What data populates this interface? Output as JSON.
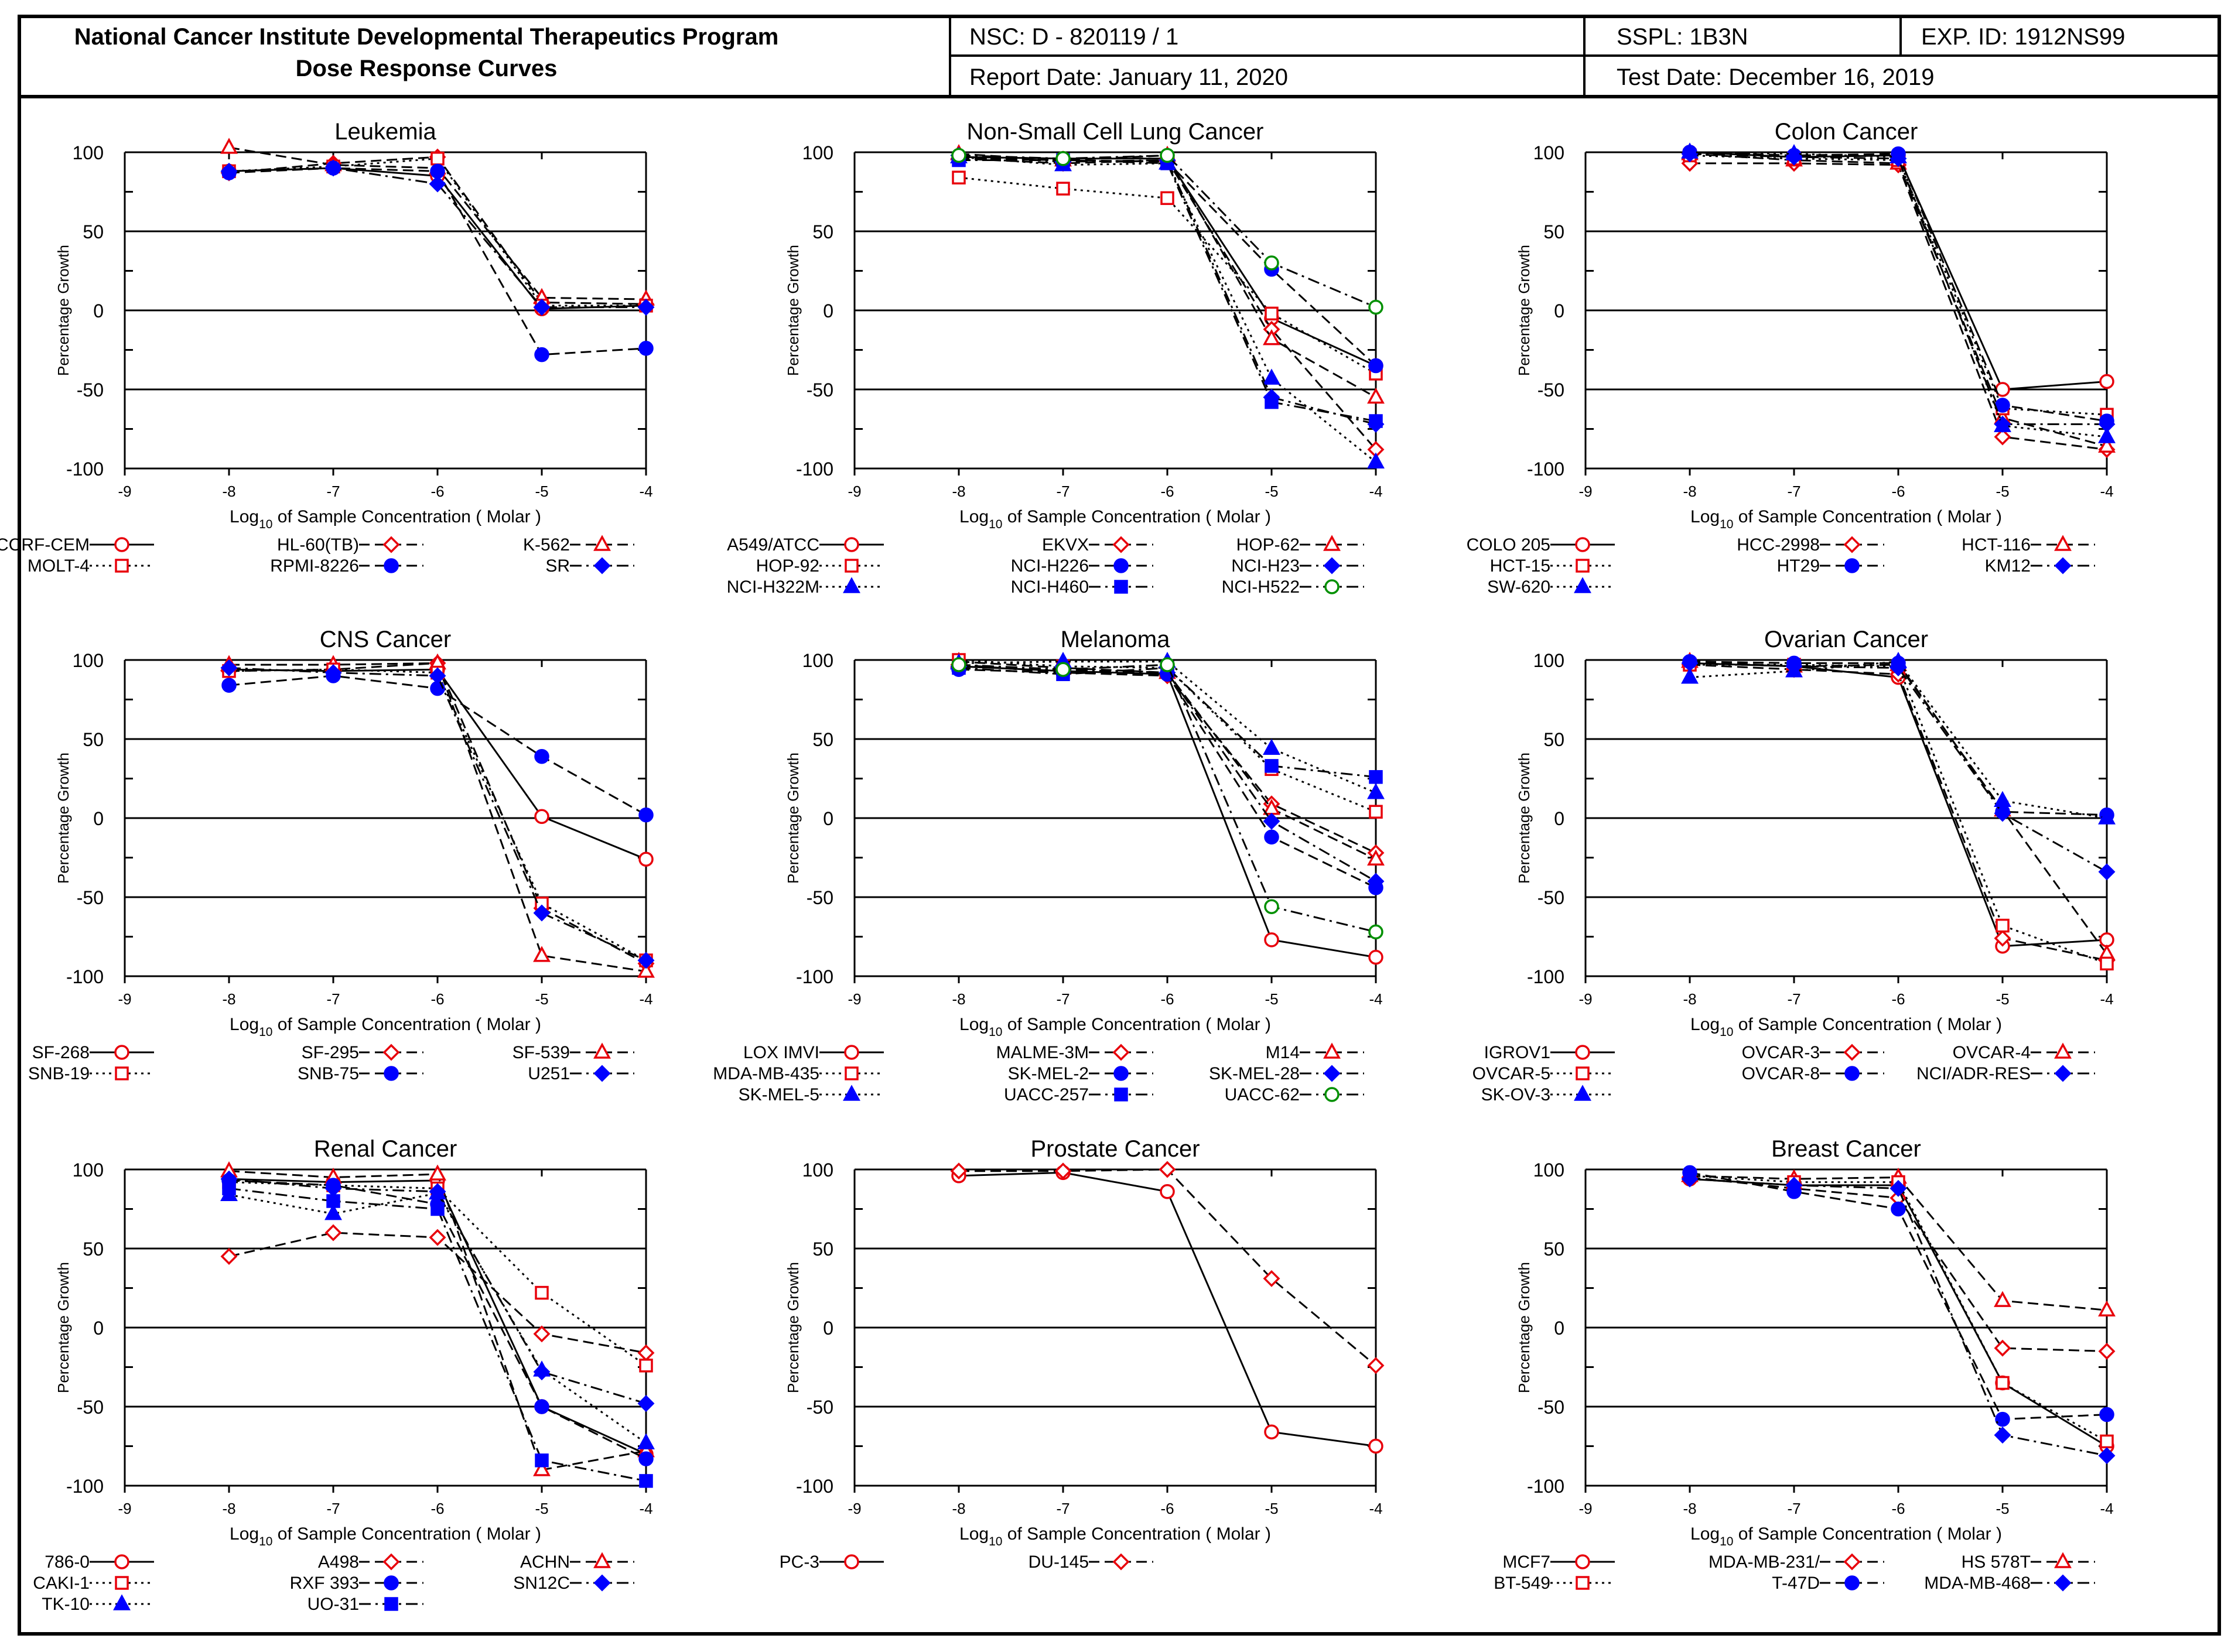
{
  "header": {
    "title_line1": "National Cancer Institute Developmental Therapeutics Program",
    "title_line2": "Dose Response Curves",
    "nsc": "NSC: D - 820119 / 1",
    "sspl": "SSPL: 1B3N",
    "exp_id": "EXP. ID: 1912NS99",
    "report_date": "Report Date: January 11, 2020",
    "test_date": "Test Date: December 16, 2019"
  },
  "axis_text": {
    "ylabel": "Percentage Growth",
    "xlabel_pre": "Log",
    "xlabel_sub": "10",
    "xlabel_post": " of Sample Concentration ( Molar )",
    "xticks": [
      "-9",
      "-8",
      "-7",
      "-6",
      "-5",
      "-4"
    ],
    "yticks": [
      "100",
      "50",
      "0",
      "-50",
      "-100"
    ]
  },
  "styles": {
    "0": {
      "color": "#e8000b",
      "marker": "open-circle",
      "dash": "solid"
    },
    "1": {
      "color": "#e8000b",
      "marker": "open-diamond",
      "dash": "dashed"
    },
    "2": {
      "color": "#e8000b",
      "marker": "open-triangle",
      "dash": "dashed"
    },
    "3": {
      "color": "#e8000b",
      "marker": "open-square",
      "dash": "dotted"
    },
    "4": {
      "color": "#0000ff",
      "marker": "filled-circle",
      "dash": "dashed"
    },
    "5": {
      "color": "#0000ff",
      "marker": "filled-diamond",
      "dash": "dashdot"
    },
    "6": {
      "color": "#0000ff",
      "marker": "filled-triangle",
      "dash": "dotted"
    },
    "7": {
      "color": "#0000ff",
      "marker": "filled-square",
      "dash": "dashdot"
    },
    "8": {
      "color": "#009000",
      "marker": "open-circle",
      "dash": "dashdot"
    }
  },
  "chart_data": [
    {
      "type": "line",
      "title": "Leukemia",
      "x": [
        -8,
        -7,
        -6,
        -5,
        -4
      ],
      "xlim": [
        -9,
        -4
      ],
      "ylim": [
        -100,
        100
      ],
      "series": [
        {
          "name": "CCRF-CEM",
          "values": [
            88,
            90,
            85,
            1,
            3
          ]
        },
        {
          "name": "HL-60(TB)",
          "values": [
            87,
            93,
            97,
            5,
            4
          ]
        },
        {
          "name": "K-562",
          "values": [
            103,
            92,
            90,
            8,
            7
          ]
        },
        {
          "name": "MOLT-4",
          "values": [
            88,
            91,
            96,
            3,
            3
          ]
        },
        {
          "name": "RPMI-8226",
          "values": [
            87,
            90,
            88,
            -28,
            -24
          ]
        },
        {
          "name": "SR",
          "values": [
            88,
            90,
            80,
            2,
            2
          ]
        }
      ]
    },
    {
      "type": "line",
      "title": "Non-Small Cell Lung Cancer",
      "x": [
        -8,
        -7,
        -6,
        -5,
        -4
      ],
      "xlim": [
        -9,
        -4
      ],
      "ylim": [
        -100,
        100
      ],
      "series": [
        {
          "name": "A549/ATCC",
          "values": [
            97,
            96,
            96,
            -5,
            -35
          ]
        },
        {
          "name": "EKVX",
          "values": [
            96,
            93,
            95,
            -12,
            -88
          ]
        },
        {
          "name": "HOP-62",
          "values": [
            99,
            95,
            98,
            -18,
            -55
          ]
        },
        {
          "name": "HOP-92",
          "values": [
            84,
            77,
            71,
            -2,
            -40
          ]
        },
        {
          "name": "NCI-H226",
          "values": [
            96,
            95,
            94,
            26,
            -35
          ]
        },
        {
          "name": "NCI-H23",
          "values": [
            98,
            94,
            95,
            -55,
            -72
          ]
        },
        {
          "name": "NCI-H322M",
          "values": [
            97,
            92,
            93,
            -43,
            -96
          ]
        },
        {
          "name": "NCI-H460",
          "values": [
            95,
            95,
            93,
            -58,
            -70
          ]
        },
        {
          "name": "NCI-H522",
          "values": [
            98,
            96,
            98,
            30,
            2
          ]
        }
      ]
    },
    {
      "type": "line",
      "title": "Colon Cancer",
      "x": [
        -8,
        -7,
        -6,
        -5,
        -4
      ],
      "xlim": [
        -9,
        -4
      ],
      "ylim": [
        -100,
        100
      ],
      "series": [
        {
          "name": "COLO 205",
          "values": [
            100,
            97,
            98,
            -50,
            -45
          ]
        },
        {
          "name": "HCC-2998",
          "values": [
            93,
            93,
            92,
            -80,
            -88
          ]
        },
        {
          "name": "HCT-116",
          "values": [
            99,
            95,
            93,
            -68,
            -86
          ]
        },
        {
          "name": "HCT-15",
          "values": [
            98,
            96,
            95,
            -62,
            -66
          ]
        },
        {
          "name": "HT29",
          "values": [
            100,
            98,
            99,
            -60,
            -70
          ]
        },
        {
          "name": "KM12",
          "values": [
            99,
            97,
            96,
            -72,
            -72
          ]
        },
        {
          "name": "SW-620",
          "values": [
            100,
            99,
            97,
            -73,
            -80
          ]
        }
      ]
    },
    {
      "type": "line",
      "title": "CNS Cancer",
      "x": [
        -8,
        -7,
        -6,
        -5,
        -4
      ],
      "xlim": [
        -9,
        -4
      ],
      "ylim": [
        -100,
        100
      ],
      "series": [
        {
          "name": "SF-268",
          "values": [
            94,
            93,
            94,
            1,
            -26
          ]
        },
        {
          "name": "SF-295",
          "values": [
            93,
            94,
            98,
            -57,
            -92
          ]
        },
        {
          "name": "SF-539",
          "values": [
            97,
            97,
            98,
            -87,
            -97
          ]
        },
        {
          "name": "SNB-19",
          "values": [
            93,
            94,
            92,
            -54,
            -90
          ]
        },
        {
          "name": "SNB-75",
          "values": [
            84,
            90,
            82,
            39,
            2
          ]
        },
        {
          "name": "U251",
          "values": [
            95,
            92,
            90,
            -60,
            -90
          ]
        }
      ]
    },
    {
      "type": "line",
      "title": "Melanoma",
      "x": [
        -8,
        -7,
        -6,
        -5,
        -4
      ],
      "xlim": [
        -9,
        -4
      ],
      "ylim": [
        -100,
        100
      ],
      "series": [
        {
          "name": "LOX IMVI",
          "values": [
            96,
            93,
            91,
            -77,
            -88
          ]
        },
        {
          "name": "MALME-3M",
          "values": [
            97,
            92,
            90,
            9,
            -22
          ]
        },
        {
          "name": "M14",
          "values": [
            99,
            95,
            92,
            6,
            -26
          ]
        },
        {
          "name": "MDA-MB-435",
          "values": [
            100,
            96,
            95,
            31,
            4
          ]
        },
        {
          "name": "SK-MEL-2",
          "values": [
            94,
            92,
            91,
            -12,
            -44
          ]
        },
        {
          "name": "SK-MEL-28",
          "values": [
            96,
            94,
            92,
            -2,
            -40
          ]
        },
        {
          "name": "SK-MEL-5",
          "values": [
            98,
            99,
            99,
            44,
            16
          ]
        },
        {
          "name": "UACC-257",
          "values": [
            95,
            91,
            95,
            33,
            26
          ]
        },
        {
          "name": "UACC-62",
          "values": [
            97,
            94,
            97,
            -56,
            -72
          ]
        }
      ]
    },
    {
      "type": "line",
      "title": "Ovarian Cancer",
      "x": [
        -8,
        -7,
        -6,
        -5,
        -4
      ],
      "xlim": [
        -9,
        -4
      ],
      "ylim": [
        -100,
        100
      ],
      "series": [
        {
          "name": "IGROV1",
          "values": [
            98,
            96,
            89,
            -81,
            -77
          ]
        },
        {
          "name": "OVCAR-3",
          "values": [
            97,
            94,
            91,
            -76,
            -90
          ]
        },
        {
          "name": "OVCAR-4",
          "values": [
            99,
            96,
            97,
            5,
            -86
          ]
        },
        {
          "name": "OVCAR-5",
          "values": [
            97,
            97,
            96,
            -68,
            -92
          ]
        },
        {
          "name": "OVCAR-8",
          "values": [
            99,
            98,
            98,
            4,
            2
          ]
        },
        {
          "name": "NCI/ADR-RES",
          "values": [
            98,
            96,
            95,
            3,
            -34
          ]
        },
        {
          "name": "SK-OV-3",
          "values": [
            89,
            93,
            99,
            11,
            0
          ]
        }
      ]
    },
    {
      "type": "line",
      "title": "Renal Cancer",
      "x": [
        -8,
        -7,
        -6,
        -5,
        -4
      ],
      "xlim": [
        -9,
        -4
      ],
      "ylim": [
        -100,
        100
      ],
      "series": [
        {
          "name": "786-0",
          "values": [
            94,
            92,
            93,
            -50,
            -80
          ]
        },
        {
          "name": "A498",
          "values": [
            45,
            60,
            57,
            -4,
            -16
          ]
        },
        {
          "name": "ACHN",
          "values": [
            99,
            95,
            97,
            -90,
            -78
          ]
        },
        {
          "name": "CAKI-1",
          "values": [
            92,
            90,
            88,
            22,
            -24
          ]
        },
        {
          "name": "RXF 393",
          "values": [
            93,
            90,
            78,
            -50,
            -83
          ]
        },
        {
          "name": "SN12C",
          "values": [
            94,
            88,
            86,
            -28,
            -48
          ]
        },
        {
          "name": "TK-10",
          "values": [
            84,
            72,
            85,
            -27,
            -73
          ]
        },
        {
          "name": "UO-31",
          "values": [
            88,
            80,
            75,
            -84,
            -97
          ]
        }
      ]
    },
    {
      "type": "line",
      "title": "Prostate Cancer",
      "x": [
        -8,
        -7,
        -6,
        -5,
        -4
      ],
      "xlim": [
        -9,
        -4
      ],
      "ylim": [
        -100,
        100
      ],
      "series": [
        {
          "name": "PC-3",
          "values": [
            96,
            98,
            86,
            -66,
            -75
          ]
        },
        {
          "name": "DU-145",
          "values": [
            99,
            99,
            100,
            31,
            -24
          ]
        }
      ]
    },
    {
      "type": "line",
      "title": "Breast Cancer",
      "x": [
        -8,
        -7,
        -6,
        -5,
        -4
      ],
      "xlim": [
        -9,
        -4
      ],
      "ylim": [
        -100,
        100
      ],
      "series": [
        {
          "name": "MCF7",
          "values": [
            94,
            90,
            90,
            -35,
            -75
          ]
        },
        {
          "name": "MDA-MB-231/",
          "values": [
            95,
            88,
            82,
            -13,
            -15
          ]
        },
        {
          "name": "HS 578T",
          "values": [
            96,
            94,
            95,
            17,
            11
          ]
        },
        {
          "name": "BT-549",
          "values": [
            96,
            92,
            92,
            -35,
            -72
          ]
        },
        {
          "name": "T-47D",
          "values": [
            98,
            86,
            75,
            -58,
            -55
          ]
        },
        {
          "name": "MDA-MB-468",
          "values": [
            94,
            90,
            88,
            -68,
            -81
          ]
        }
      ]
    }
  ]
}
